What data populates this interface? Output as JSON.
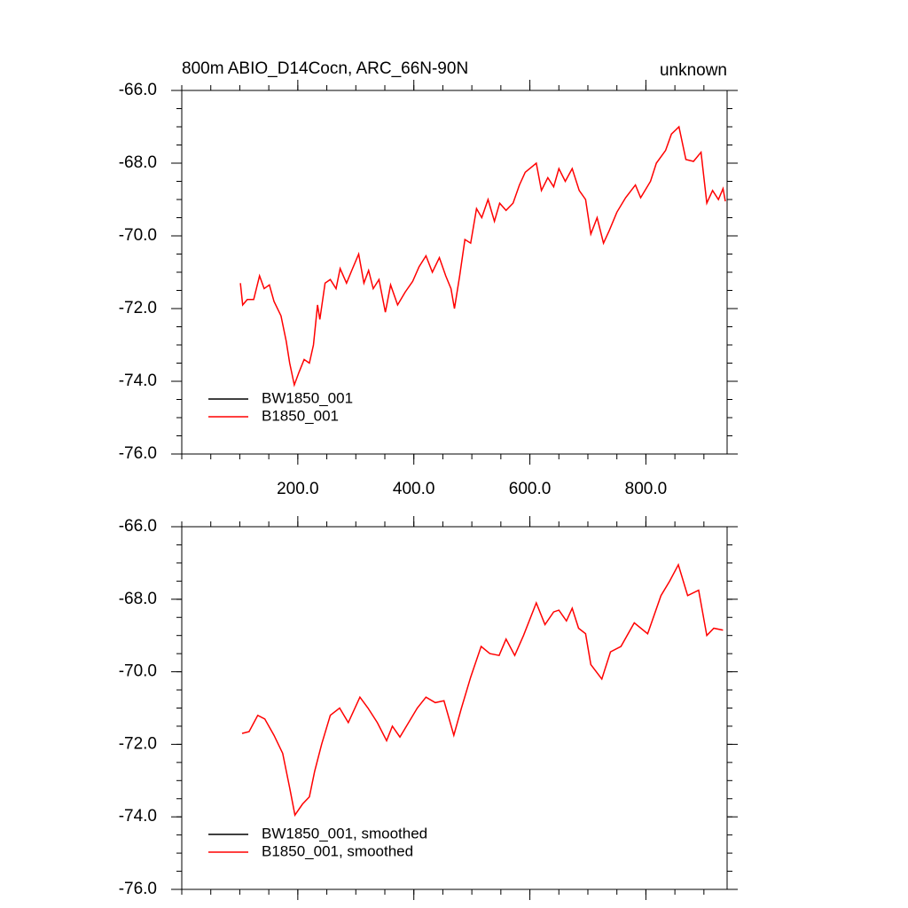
{
  "chart_data": [
    {
      "type": "line",
      "title": "800m ABIO_D14Cocn, ARC_66N-90N",
      "right_title": "unknown",
      "x": [
        101,
        105,
        113,
        124,
        134,
        142,
        151,
        159,
        171,
        180,
        186,
        194,
        202,
        211,
        220,
        227,
        234,
        238,
        247,
        256,
        266,
        273,
        284,
        293,
        305,
        314,
        322,
        330,
        340,
        351,
        360,
        372,
        385,
        398,
        409,
        421,
        432,
        444,
        455,
        464,
        470,
        479,
        488,
        498,
        508,
        517,
        528,
        539,
        548,
        559,
        571,
        582,
        592,
        611,
        620,
        631,
        641,
        650,
        661,
        673,
        685,
        696,
        705,
        716,
        727,
        737,
        750,
        765,
        782,
        791,
        808,
        818,
        834,
        844,
        857,
        869,
        882,
        895,
        905,
        915,
        925,
        933,
        937
      ],
      "series": [
        {
          "name": "BW1850_001",
          "color": "#000000"
        },
        {
          "name": "B1850_001",
          "color": "#ff0000",
          "values": [
            -71.3,
            -71.9,
            -71.75,
            -71.75,
            -71.1,
            -71.45,
            -71.35,
            -71.8,
            -72.2,
            -72.9,
            -73.5,
            -74.1,
            -73.75,
            -73.4,
            -73.5,
            -73.0,
            -71.9,
            -72.3,
            -71.3,
            -71.2,
            -71.45,
            -70.9,
            -71.3,
            -70.95,
            -70.5,
            -71.3,
            -70.95,
            -71.45,
            -71.2,
            -72.1,
            -71.35,
            -71.9,
            -71.55,
            -71.25,
            -70.85,
            -70.55,
            -71.0,
            -70.6,
            -71.1,
            -71.45,
            -72.0,
            -71.1,
            -70.1,
            -70.2,
            -69.25,
            -69.5,
            -69.0,
            -69.6,
            -69.1,
            -69.3,
            -69.1,
            -68.6,
            -68.25,
            -68.0,
            -68.75,
            -68.4,
            -68.65,
            -68.15,
            -68.5,
            -68.15,
            -68.75,
            -69.0,
            -69.95,
            -69.5,
            -70.2,
            -69.85,
            -69.35,
            -68.95,
            -68.6,
            -68.95,
            -68.5,
            -68.0,
            -67.65,
            -67.2,
            -67.0,
            -67.9,
            -67.95,
            -67.7,
            -69.1,
            -68.75,
            -69.0,
            -68.7,
            -69.05
          ]
        }
      ],
      "xlim": [
        0,
        940
      ],
      "ylim": [
        -76,
        -66
      ],
      "xticks": [
        {
          "value": 200,
          "label": "200.0"
        },
        {
          "value": 400,
          "label": "400.0"
        },
        {
          "value": 600,
          "label": "600.0"
        },
        {
          "value": 800,
          "label": "800.0"
        }
      ],
      "yticks": [
        {
          "value": -76,
          "label": "-76.0"
        },
        {
          "value": -74,
          "label": "-74.0"
        },
        {
          "value": -72,
          "label": "-72.0"
        },
        {
          "value": -70,
          "label": "-70.0"
        },
        {
          "value": -68,
          "label": "-68.0"
        },
        {
          "value": -66,
          "label": "-66.0"
        }
      ],
      "legend": "lower left"
    },
    {
      "type": "line",
      "x": [
        104,
        116,
        131,
        143,
        159,
        174,
        186,
        195,
        208,
        220,
        229,
        241,
        256,
        272,
        287,
        307,
        321,
        337,
        353,
        363,
        376,
        391,
        406,
        421,
        437,
        452,
        469,
        482,
        498,
        516,
        531,
        547,
        559,
        574,
        589,
        611,
        626,
        641,
        650,
        663,
        673,
        684,
        696,
        705,
        724,
        739,
        757,
        780,
        803,
        826,
        841,
        856,
        872,
        891,
        905,
        917,
        933
      ],
      "series": [
        {
          "name": "BW1850_001, smoothed",
          "color": "#000000"
        },
        {
          "name": "B1850_001, smoothed",
          "color": "#ff0000",
          "values": [
            -71.7,
            -71.65,
            -71.2,
            -71.3,
            -71.75,
            -72.25,
            -73.2,
            -73.95,
            -73.65,
            -73.45,
            -72.75,
            -72.0,
            -71.2,
            -71.0,
            -71.4,
            -70.7,
            -71.0,
            -71.4,
            -71.9,
            -71.5,
            -71.8,
            -71.4,
            -71.0,
            -70.7,
            -70.85,
            -70.8,
            -71.75,
            -71.0,
            -70.15,
            -69.3,
            -69.5,
            -69.55,
            -69.1,
            -69.55,
            -69.0,
            -68.1,
            -68.7,
            -68.35,
            -68.3,
            -68.6,
            -68.25,
            -68.8,
            -68.95,
            -69.8,
            -70.2,
            -69.45,
            -69.3,
            -68.65,
            -68.95,
            -67.9,
            -67.5,
            -67.05,
            -67.9,
            -67.75,
            -69.0,
            -68.8,
            -68.85
          ]
        }
      ],
      "xlim": [
        0,
        940
      ],
      "ylim": [
        -76,
        -66
      ],
      "xticks": [
        200,
        400,
        600,
        800
      ],
      "yticks": [
        {
          "value": -76,
          "label": "-76.0"
        },
        {
          "value": -74,
          "label": "-74.0"
        },
        {
          "value": -72,
          "label": "-72.0"
        },
        {
          "value": -70,
          "label": "-70.0"
        },
        {
          "value": -68,
          "label": "-68.0"
        },
        {
          "value": -66,
          "label": "-66.0"
        }
      ],
      "legend": "lower left"
    }
  ]
}
